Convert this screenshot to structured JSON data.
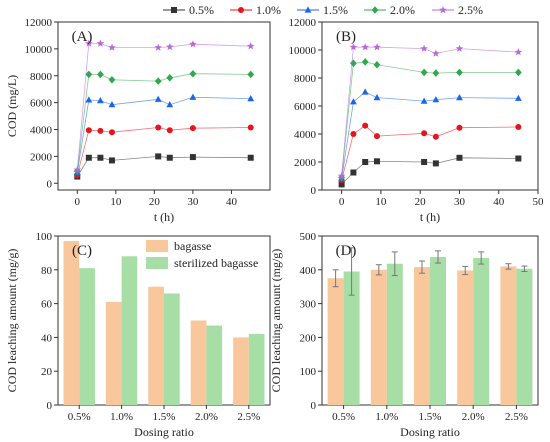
{
  "legend_top": [
    "0.5%",
    "1.0%",
    "1.5%",
    "2.0%",
    "2.5%"
  ],
  "series_colors": [
    "#333333",
    "#e8141b",
    "#1b66e8",
    "#2eaa4a",
    "#bb66dd"
  ],
  "series_markers": [
    "square",
    "circle",
    "triangle",
    "diamond",
    "star"
  ],
  "bar_colors": {
    "bagasse": "#f9c79c",
    "sterilized": "#a6dea6"
  },
  "chart_data": [
    {
      "type": "line",
      "panel_label": "(A)",
      "xlabel": "t (h)",
      "ylabel": "COD (mg/L)",
      "xlim": [
        -5,
        50
      ],
      "ylim": [
        -500,
        12000
      ],
      "xticks": [
        0,
        10,
        20,
        30,
        40
      ],
      "yticks": [
        0,
        2000,
        4000,
        6000,
        8000,
        10000,
        12000
      ],
      "x": [
        0,
        3,
        6,
        9,
        21,
        24,
        30,
        45
      ],
      "series": [
        {
          "name": "0.5%",
          "values": [
            500,
            1900,
            1900,
            1700,
            2000,
            1900,
            1950,
            1900
          ]
        },
        {
          "name": "1.0%",
          "values": [
            600,
            3950,
            3900,
            3800,
            4150,
            3950,
            4100,
            4150
          ]
        },
        {
          "name": "1.5%",
          "values": [
            800,
            6200,
            6150,
            5850,
            6250,
            5850,
            6400,
            6300
          ]
        },
        {
          "name": "2.0%",
          "values": [
            900,
            8100,
            8100,
            7700,
            7600,
            7850,
            8150,
            8100
          ]
        },
        {
          "name": "2.5%",
          "values": [
            1000,
            10400,
            10400,
            10100,
            10100,
            10150,
            10350,
            10200
          ]
        }
      ]
    },
    {
      "type": "line",
      "panel_label": "(B)",
      "xlabel": "t (h)",
      "ylabel": "",
      "xlim": [
        -5,
        50
      ],
      "ylim": [
        0,
        12000
      ],
      "xticks": [
        0,
        10,
        20,
        30,
        40,
        50
      ],
      "yticks": [
        0,
        2000,
        4000,
        6000,
        8000,
        10000,
        12000
      ],
      "x": [
        0,
        3,
        6,
        9,
        21,
        24,
        30,
        45
      ],
      "series": [
        {
          "name": "0.5%",
          "values": [
            400,
            1250,
            2000,
            2050,
            2000,
            1900,
            2300,
            2250
          ]
        },
        {
          "name": "1.0%",
          "values": [
            700,
            4000,
            4600,
            3850,
            4050,
            3800,
            4450,
            4500
          ]
        },
        {
          "name": "1.5%",
          "values": [
            800,
            6300,
            7000,
            6600,
            6350,
            6450,
            6600,
            6550
          ]
        },
        {
          "name": "2.0%",
          "values": [
            900,
            9050,
            9150,
            8950,
            8400,
            8350,
            8400,
            8400
          ]
        },
        {
          "name": "2.5%",
          "values": [
            1000,
            10200,
            10200,
            10200,
            10100,
            9750,
            10100,
            9850
          ]
        }
      ]
    },
    {
      "type": "bar",
      "panel_label": "(C)",
      "xlabel": "Dosing ratio",
      "ylabel": "COD leaching amount (mg/g)",
      "ylim": [
        0,
        100
      ],
      "yticks": [
        0,
        20,
        40,
        60,
        80,
        100
      ],
      "categories": [
        "0.5%",
        "1.0%",
        "1.5%",
        "2.0%",
        "2.5%"
      ],
      "series": [
        {
          "name": "bagasse",
          "values": [
            97,
            61,
            70,
            50,
            40
          ]
        },
        {
          "name": "sterilized bagasse",
          "values": [
            81,
            88,
            66,
            47,
            42
          ]
        }
      ]
    },
    {
      "type": "bar",
      "panel_label": "(D)",
      "xlabel": "Dosing ratio",
      "ylabel": "COD leaching amount (mg/g)",
      "ylim": [
        0,
        500
      ],
      "yticks": [
        0,
        100,
        200,
        300,
        400,
        500
      ],
      "categories": [
        "0.5%",
        "1.0%",
        "1.5%",
        "2.0%",
        "2.5%"
      ],
      "series": [
        {
          "name": "bagasse",
          "values": [
            375,
            400,
            408,
            398,
            410
          ],
          "errors": [
            25,
            15,
            18,
            12,
            8
          ]
        },
        {
          "name": "sterilized bagasse",
          "values": [
            395,
            418,
            438,
            435,
            403
          ],
          "errors": [
            70,
            35,
            18,
            18,
            8
          ]
        }
      ]
    }
  ]
}
